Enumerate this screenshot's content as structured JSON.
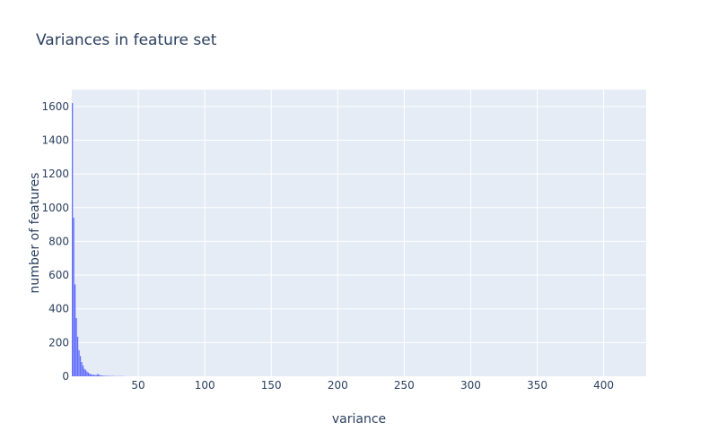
{
  "chart_data": {
    "type": "bar",
    "title": "Variances in feature set",
    "xlabel": "variance",
    "ylabel": "number of features",
    "xlim": [
      0,
      432
    ],
    "ylim": [
      0,
      1700
    ],
    "x_ticks": [
      50,
      100,
      150,
      200,
      250,
      300,
      350,
      400
    ],
    "y_ticks": [
      0,
      200,
      400,
      600,
      800,
      1000,
      1200,
      1400,
      1600
    ],
    "bin_width": 1,
    "x": [
      0,
      1,
      2,
      3,
      4,
      5,
      6,
      7,
      8,
      9,
      10,
      11,
      12,
      13,
      14,
      15,
      16,
      17,
      18,
      19,
      20,
      21,
      22,
      23,
      24,
      25,
      26,
      27,
      28,
      29,
      30,
      31,
      32,
      33,
      34,
      35,
      36,
      37,
      38,
      39
    ],
    "values": [
      1620,
      940,
      545,
      345,
      235,
      155,
      120,
      85,
      65,
      45,
      38,
      28,
      22,
      16,
      12,
      10,
      9,
      8,
      7,
      14,
      10,
      6,
      5,
      4,
      3,
      3,
      3,
      2,
      2,
      2,
      2,
      2,
      1,
      1,
      1,
      1,
      1,
      1,
      1,
      1
    ],
    "grid": true,
    "colors": {
      "bar": "#636efa",
      "plot_bg": "#e5ecf6",
      "grid": "#ffffff",
      "text": "#2a3f5f"
    }
  }
}
